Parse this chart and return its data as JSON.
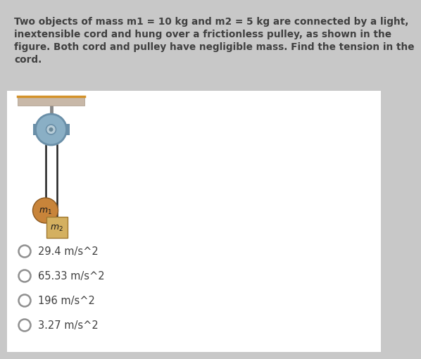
{
  "background_color": "#c8c8c8",
  "content_bg": "#ffffff",
  "question_text_lines": [
    "Two objects of mass m1 = 10 kg and m2 = 5 kg are connected by a light,",
    "inextensible cord and hung over a frictionless pulley, as shown in the",
    "figure. Both cord and pulley have negligible mass. Find the tension in the",
    "cord."
  ],
  "options": [
    "29.4 m/s^2",
    "65.33 m/s^2",
    "196 m/s^2",
    "3.27 m/s^2"
  ],
  "question_fontsize": 9.8,
  "option_fontsize": 10.5,
  "pulley_color": "#8aafc5",
  "pulley_rim_color": "#6a8fa8",
  "pulley_hub_color": "#b8cdd8",
  "support_color": "#c8b8a8",
  "support_line_color": "#d4922a",
  "cord_color": "#222222",
  "mass1_color": "#c8843a",
  "mass1_edge_color": "#8a5820",
  "mass2_color": "#d4b060",
  "mass2_edge_color": "#a07830",
  "text_color": "#404040",
  "option_circle_color": "#909090",
  "stem_color": "#888888"
}
